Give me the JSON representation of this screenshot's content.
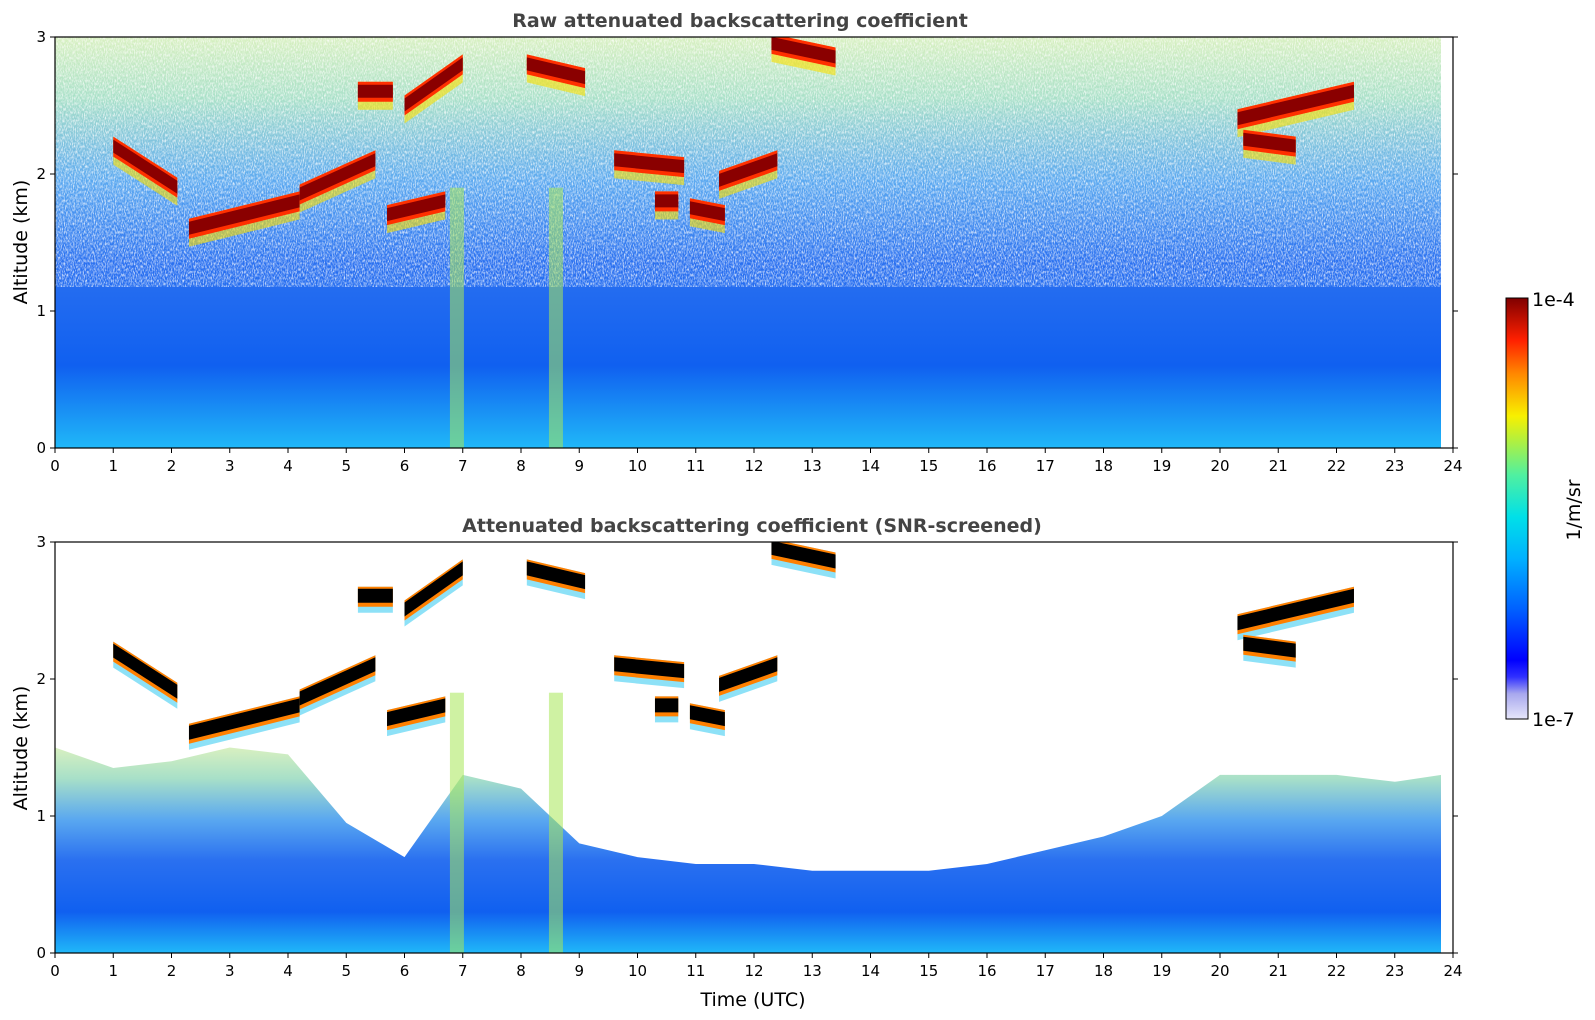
{
  "chart_data": [
    {
      "type": "heatmap",
      "title": "Raw attenuated backscattering coefficient",
      "xlabel": "",
      "ylabel": "Altitude (km)",
      "xlim": [
        0,
        24
      ],
      "ylim": [
        0,
        3
      ],
      "x_ticks": [
        "0",
        "1",
        "2",
        "3",
        "4",
        "5",
        "6",
        "7",
        "8",
        "9",
        "10",
        "11",
        "12",
        "13",
        "14",
        "15",
        "16",
        "17",
        "18",
        "19",
        "20",
        "21",
        "22",
        "23",
        "24"
      ],
      "y_ticks": [
        "0",
        "1",
        "2",
        "3"
      ],
      "data_end_hour": 23.8,
      "cloud_layers": [
        {
          "start": 1.0,
          "end": 2.1,
          "alt_start": 2.2,
          "alt_end": 1.9
        },
        {
          "start": 2.3,
          "end": 4.2,
          "alt_start": 1.6,
          "alt_end": 1.8
        },
        {
          "start": 4.2,
          "end": 5.5,
          "alt_start": 1.85,
          "alt_end": 2.1
        },
        {
          "start": 5.2,
          "end": 5.8,
          "alt_start": 2.6,
          "alt_end": 2.6
        },
        {
          "start": 5.7,
          "end": 6.7,
          "alt_start": 1.7,
          "alt_end": 1.8
        },
        {
          "start": 6.0,
          "end": 7.0,
          "alt_start": 2.5,
          "alt_end": 2.8
        },
        {
          "start": 8.1,
          "end": 9.1,
          "alt_start": 2.8,
          "alt_end": 2.7
        },
        {
          "start": 9.6,
          "end": 10.8,
          "alt_start": 2.1,
          "alt_end": 2.05
        },
        {
          "start": 10.3,
          "end": 10.7,
          "alt_start": 1.8,
          "alt_end": 1.8
        },
        {
          "start": 10.9,
          "end": 11.5,
          "alt_start": 1.75,
          "alt_end": 1.7
        },
        {
          "start": 11.4,
          "end": 12.4,
          "alt_start": 1.95,
          "alt_end": 2.1
        },
        {
          "start": 12.3,
          "end": 13.4,
          "alt_start": 2.95,
          "alt_end": 2.85
        },
        {
          "start": 20.3,
          "end": 22.3,
          "alt_start": 2.4,
          "alt_end": 2.6
        },
        {
          "start": 20.4,
          "end": 21.3,
          "alt_start": 2.25,
          "alt_end": 2.2
        }
      ],
      "aerosol_plumes": [
        6.9,
        8.6
      ]
    },
    {
      "type": "heatmap",
      "title": "Attenuated backscattering coefficient (SNR-screened)",
      "xlabel": "Time (UTC)",
      "ylabel": "Altitude (km)",
      "xlim": [
        0,
        24
      ],
      "ylim": [
        0,
        3
      ],
      "x_ticks": [
        "0",
        "1",
        "2",
        "3",
        "4",
        "5",
        "6",
        "7",
        "8",
        "9",
        "10",
        "11",
        "12",
        "13",
        "14",
        "15",
        "16",
        "17",
        "18",
        "19",
        "20",
        "21",
        "22",
        "23",
        "24"
      ],
      "y_ticks": [
        "0",
        "1",
        "2",
        "3"
      ],
      "screen_boundary": {
        "hours": [
          0,
          1,
          2,
          3,
          4,
          5,
          6,
          7,
          8,
          9,
          10,
          11,
          12,
          13,
          14,
          15,
          16,
          17,
          18,
          19,
          20,
          21,
          22,
          23,
          23.8
        ],
        "altitude_km": [
          1.5,
          1.35,
          1.4,
          1.5,
          1.45,
          0.95,
          0.7,
          1.3,
          1.2,
          0.8,
          0.7,
          0.65,
          0.65,
          0.6,
          0.6,
          0.6,
          0.65,
          0.75,
          0.85,
          1.0,
          1.3,
          1.3,
          1.3,
          1.25,
          1.3
        ]
      }
    }
  ],
  "colorbar": {
    "label": "1/m/sr",
    "max_label": "1e-4",
    "min_label": "1e-7",
    "colors": [
      "#dcdcf8",
      "#b8b8f0",
      "#9090e8",
      "#0000ff",
      "#0050ff",
      "#00a0ff",
      "#00d8f0",
      "#40f0b0",
      "#a0f050",
      "#f8f000",
      "#ff9000",
      "#ff2800",
      "#a00000",
      "#800000"
    ]
  }
}
